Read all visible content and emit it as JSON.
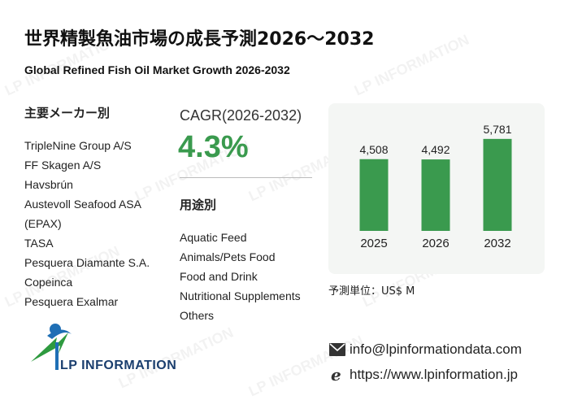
{
  "title": "世界精製魚油市場の成長予測2026～2032",
  "subtitle": "Global Refined Fish Oil Market Growth 2026-2032",
  "watermark_text": "LP INFORMATION",
  "manufacturers": {
    "heading": "主要メーカー別",
    "items": [
      "TripleNine Group A/S",
      "FF Skagen A/S",
      "Havsbrún",
      "Austevoll Seafood ASA",
      "(EPAX)",
      "TASA",
      "Pesquera Diamante S.A.",
      "Copeinca",
      "Pesquera Exalmar"
    ]
  },
  "cagr": {
    "label": "CAGR(2026-2032)",
    "value": "4.3%"
  },
  "applications": {
    "heading": "用途別",
    "items": [
      "Aquatic Feed",
      "Animals/Pets Food",
      "Food and Drink",
      "Nutritional Supplements",
      "Others"
    ]
  },
  "chart_data": {
    "type": "bar",
    "categories": [
      "2025",
      "2026",
      "2032"
    ],
    "values": [
      4508,
      4492,
      5781
    ],
    "value_labels": [
      "4,508",
      "4,492",
      "5,781"
    ],
    "color": "#3a9a4e",
    "ylim": [
      0,
      7000
    ]
  },
  "unit_label": "予測単位：US$ M",
  "contact": {
    "email": "info@lpinformationdata.com",
    "url": "https://www.lpinformation.jp"
  },
  "logo_text": "LP INFORMATION",
  "colors": {
    "accent": "#3a9a4e",
    "logo_blue": "#1f6fb5",
    "logo_green": "#2e9a3f"
  }
}
